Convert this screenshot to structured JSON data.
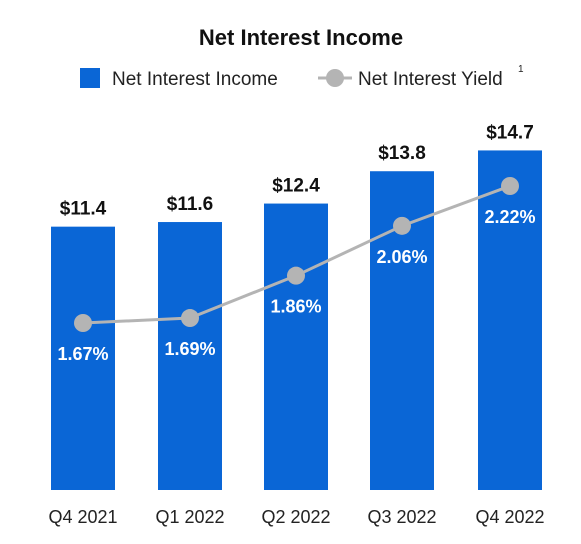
{
  "chart_data": {
    "type": "bar",
    "title": "Net Interest Income",
    "categories": [
      "Q4 2021",
      "Q1 2022",
      "Q2 2022",
      "Q3 2022",
      "Q4 2022"
    ],
    "series": [
      {
        "name": "Net Interest Income",
        "kind": "bar",
        "values": [
          11.4,
          11.6,
          12.4,
          13.8,
          14.7
        ],
        "labels": [
          "$11.4",
          "$11.6",
          "$12.4",
          "$13.8",
          "$14.7"
        ],
        "color": "#0a66d6"
      },
      {
        "name": "Net Interest Yield",
        "superscript": "1",
        "kind": "line",
        "values": [
          1.67,
          1.69,
          1.86,
          2.06,
          2.22
        ],
        "labels": [
          "1.67%",
          "1.69%",
          "1.86%",
          "2.06%",
          "2.22%"
        ],
        "color": "#b4b4b4"
      }
    ],
    "legend_position": "top",
    "grid": false
  }
}
